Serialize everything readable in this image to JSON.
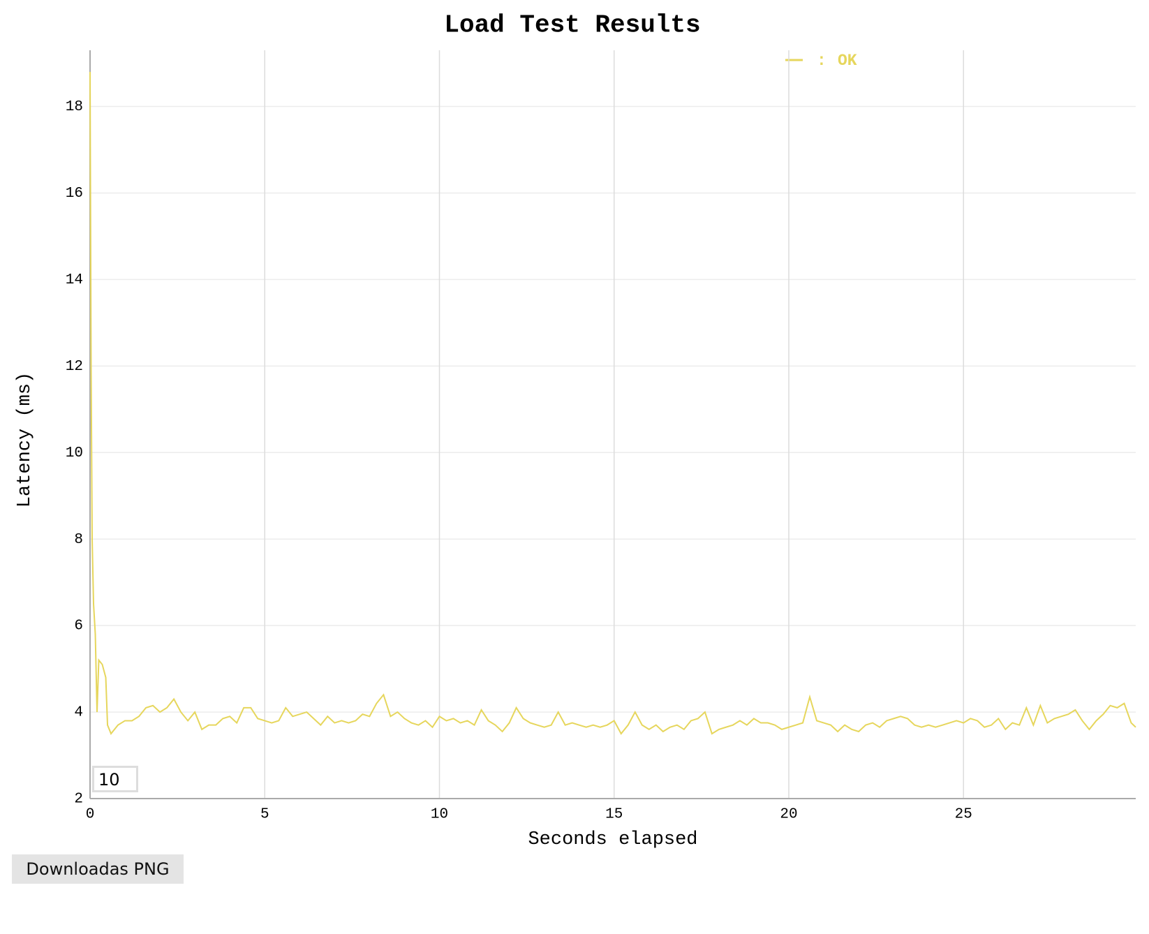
{
  "chart_data": {
    "type": "line",
    "title": "Load Test Results",
    "xlabel": "Seconds elapsed",
    "ylabel": "Latency (ms)",
    "xlim": [
      0,
      29.93
    ],
    "ylim": [
      2,
      19.3
    ],
    "xticks": [
      0,
      5,
      10,
      15,
      20,
      25
    ],
    "yticks": [
      2,
      4,
      6,
      8,
      10,
      12,
      14,
      16,
      18
    ],
    "grid": true,
    "x": [
      0,
      0.03,
      0.06,
      0.1,
      0.15,
      0.2,
      0.25,
      0.35,
      0.45,
      0.5,
      0.6,
      0.8,
      1.0,
      1.2,
      1.4,
      1.6,
      1.8,
      2.0,
      2.2,
      2.4,
      2.6,
      2.8,
      3.0,
      3.2,
      3.4,
      3.6,
      3.8,
      4.0,
      4.2,
      4.4,
      4.6,
      4.8,
      5.0,
      5.2,
      5.4,
      5.6,
      5.8,
      6.0,
      6.2,
      6.4,
      6.6,
      6.8,
      7.0,
      7.2,
      7.4,
      7.6,
      7.8,
      8.0,
      8.2,
      8.4,
      8.6,
      8.8,
      9.0,
      9.2,
      9.4,
      9.6,
      9.8,
      10.0,
      10.2,
      10.4,
      10.6,
      10.8,
      11.0,
      11.2,
      11.4,
      11.6,
      11.8,
      12.0,
      12.2,
      12.4,
      12.6,
      12.8,
      13.0,
      13.2,
      13.4,
      13.6,
      13.8,
      14.0,
      14.2,
      14.4,
      14.6,
      14.8,
      15.0,
      15.2,
      15.4,
      15.6,
      15.8,
      16.0,
      16.2,
      16.4,
      16.6,
      16.8,
      17.0,
      17.2,
      17.4,
      17.6,
      17.8,
      18.0,
      18.2,
      18.4,
      18.6,
      18.8,
      19.0,
      19.2,
      19.4,
      19.6,
      19.8,
      20.0,
      20.2,
      20.4,
      20.6,
      20.8,
      21.0,
      21.2,
      21.4,
      21.6,
      21.8,
      22.0,
      22.2,
      22.4,
      22.6,
      22.8,
      23.0,
      23.2,
      23.4,
      23.6,
      23.8,
      24.0,
      24.2,
      24.4,
      24.6,
      24.8,
      25.0,
      25.2,
      25.4,
      25.6,
      25.8,
      26.0,
      26.2,
      26.4,
      26.6,
      26.8,
      27.0,
      27.2,
      27.4,
      27.6,
      27.8,
      28.0,
      28.2,
      28.4,
      28.6,
      28.8,
      29.0,
      29.2,
      29.4,
      29.6,
      29.8,
      29.93
    ],
    "series": [
      {
        "name": "OK",
        "color": "#e6d65c",
        "values": [
          18.8,
          12,
          8,
          6.5,
          5.8,
          4.0,
          5.2,
          5.1,
          4.8,
          3.7,
          3.5,
          3.7,
          3.8,
          3.8,
          3.9,
          4.1,
          4.15,
          4.0,
          4.1,
          4.3,
          4.0,
          3.8,
          4.0,
          3.6,
          3.7,
          3.7,
          3.85,
          3.9,
          3.75,
          4.1,
          4.1,
          3.85,
          3.8,
          3.75,
          3.8,
          4.1,
          3.9,
          3.95,
          4.0,
          3.85,
          3.7,
          3.9,
          3.75,
          3.8,
          3.75,
          3.8,
          3.95,
          3.9,
          4.2,
          4.4,
          3.9,
          4.0,
          3.85,
          3.75,
          3.7,
          3.8,
          3.65,
          3.9,
          3.8,
          3.85,
          3.75,
          3.8,
          3.7,
          4.05,
          3.8,
          3.7,
          3.55,
          3.75,
          4.1,
          3.85,
          3.75,
          3.7,
          3.65,
          3.7,
          4.0,
          3.7,
          3.75,
          3.7,
          3.65,
          3.7,
          3.65,
          3.7,
          3.8,
          3.5,
          3.7,
          4.0,
          3.7,
          3.6,
          3.7,
          3.55,
          3.65,
          3.7,
          3.6,
          3.8,
          3.85,
          4.0,
          3.5,
          3.6,
          3.65,
          3.7,
          3.8,
          3.7,
          3.85,
          3.75,
          3.75,
          3.7,
          3.6,
          3.65,
          3.7,
          3.75,
          4.35,
          3.8,
          3.75,
          3.7,
          3.55,
          3.7,
          3.6,
          3.55,
          3.7,
          3.75,
          3.65,
          3.8,
          3.85,
          3.9,
          3.85,
          3.7,
          3.65,
          3.7,
          3.65,
          3.7,
          3.75,
          3.8,
          3.75,
          3.85,
          3.8,
          3.65,
          3.7,
          3.85,
          3.6,
          3.75,
          3.7,
          4.1,
          3.7,
          4.15,
          3.75,
          3.85,
          3.9,
          3.95,
          4.05,
          3.8,
          3.6,
          3.8,
          3.95,
          4.15,
          4.1,
          4.2,
          3.75,
          3.65
        ]
      }
    ]
  },
  "controls": {
    "roll_period": "10",
    "download_button": "Downloadas PNG"
  }
}
